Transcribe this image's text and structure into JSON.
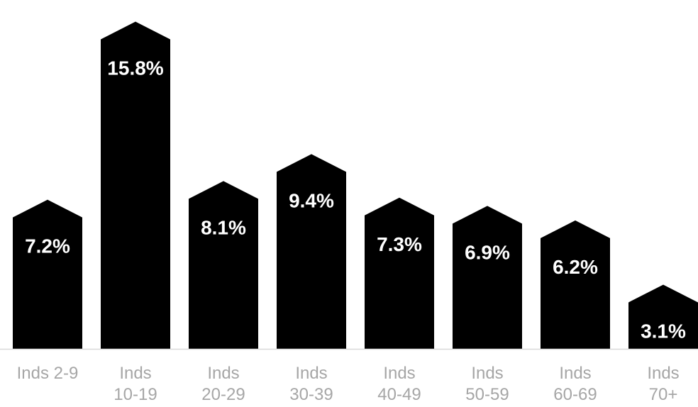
{
  "chart_data": {
    "type": "bar",
    "categories": [
      [
        "Inds 2-9"
      ],
      [
        "Inds",
        "10-19"
      ],
      [
        "Inds",
        "20-29"
      ],
      [
        "Inds",
        "30-39"
      ],
      [
        "Inds",
        "40-49"
      ],
      [
        "Inds",
        "50-59"
      ],
      [
        "Inds",
        "60-69"
      ],
      [
        "Inds",
        "70+"
      ]
    ],
    "values": [
      7.2,
      15.8,
      8.1,
      9.4,
      7.3,
      6.9,
      6.2,
      3.1
    ],
    "value_labels": [
      "7.2%",
      "15.8%",
      "8.1%",
      "9.4%",
      "7.3%",
      "6.9%",
      "6.2%",
      "3.1%"
    ],
    "title": "",
    "xlabel": "",
    "ylabel": "",
    "ylim": [
      0,
      16.5
    ],
    "grid": false,
    "legend": "none",
    "bar_color": "#000000",
    "value_label_color": "#ffffff",
    "category_label_color": "#a6a6a6",
    "axis_color": "#d9d9d9"
  }
}
